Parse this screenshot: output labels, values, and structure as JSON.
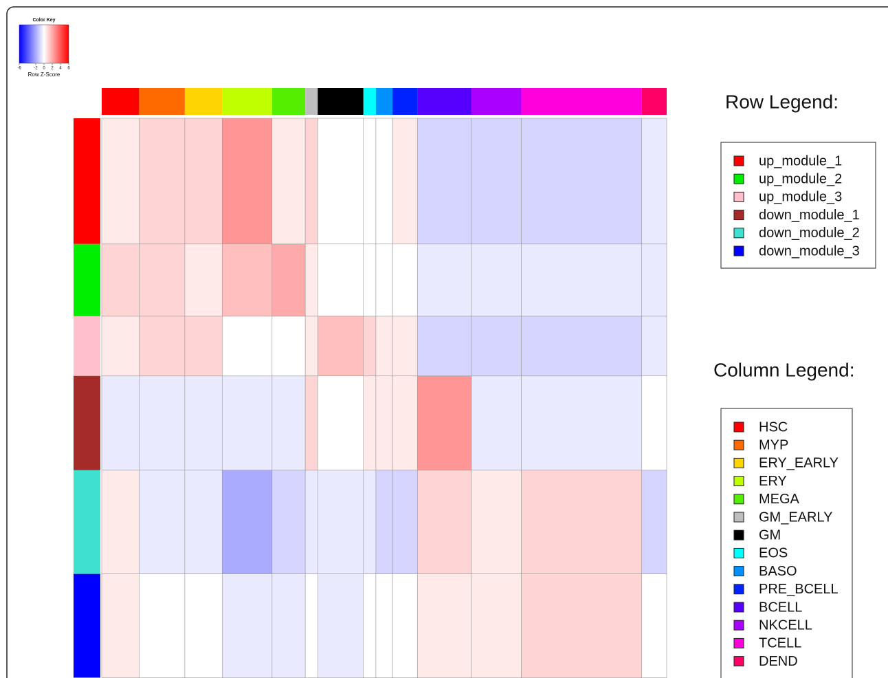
{
  "chart_data": {
    "type": "heatmap",
    "title": "Color Key",
    "colorbar_label": "Row Z-Score",
    "zlim": [
      -6,
      6
    ],
    "zticks": [
      -6,
      -2,
      0,
      2,
      4,
      6
    ],
    "colors": [
      "#0000ff",
      "#ffffff",
      "#ff0000"
    ],
    "row_legend_title": "Row Legend:",
    "column_legend_title": "Column  Legend:",
    "row_groups": [
      {
        "name": "up_module_1",
        "color": "#ff0000",
        "n": 40
      },
      {
        "name": "up_module_2",
        "color": "#00ee00",
        "n": 23
      },
      {
        "name": "up_module_3",
        "color": "#ffc0cb",
        "n": 19
      },
      {
        "name": "down_module_1",
        "color": "#a52a2a",
        "n": 30
      },
      {
        "name": "down_module_2",
        "color": "#40e0d0",
        "n": 33
      },
      {
        "name": "down_module_3",
        "color": "#0000ff",
        "n": 33
      }
    ],
    "column_groups": [
      {
        "name": "HSC",
        "color": "#ff0000",
        "n": 9
      },
      {
        "name": "MYP",
        "color": "#ff6a00",
        "n": 11
      },
      {
        "name": "ERY_EARLY",
        "color": "#ffd500",
        "n": 9
      },
      {
        "name": "ERY",
        "color": "#bfff00",
        "n": 12
      },
      {
        "name": "MEGA",
        "color": "#55ee00",
        "n": 8
      },
      {
        "name": "GM_EARLY",
        "color": "#bebebe",
        "n": 3
      },
      {
        "name": "GM",
        "color": "#000000",
        "n": 11
      },
      {
        "name": "EOS",
        "color": "#00ffff",
        "n": 3
      },
      {
        "name": "BASO",
        "color": "#0090ff",
        "n": 4
      },
      {
        "name": "PRE_BCELL",
        "color": "#0022ff",
        "n": 6
      },
      {
        "name": "BCELL",
        "color": "#5500ff",
        "n": 13
      },
      {
        "name": "NKCELL",
        "color": "#aa00ff",
        "n": 12
      },
      {
        "name": "TCELL",
        "color": "#ff00dd",
        "n": 29
      },
      {
        "name": "DEND",
        "color": "#ff0066",
        "n": 6
      }
    ],
    "values": [
      [
        0.5,
        1,
        1,
        2.5,
        0.5,
        1,
        0,
        0,
        0,
        0.5,
        -1,
        -1,
        -1,
        -0.5
      ],
      [
        1,
        1,
        0.5,
        1.5,
        2,
        0.5,
        0,
        0,
        0,
        0,
        -0.5,
        -0.5,
        -0.5,
        -0.5
      ],
      [
        0.5,
        1,
        1,
        0,
        0,
        0.5,
        1.5,
        1,
        0.5,
        0.5,
        -1,
        -1,
        -1,
        -0.5
      ],
      [
        -0.5,
        -0.5,
        -0.5,
        -0.5,
        -0.5,
        1,
        0,
        0.5,
        0.5,
        0.5,
        2.5,
        -0.5,
        -0.5,
        0
      ],
      [
        0.5,
        -0.5,
        -0.5,
        -2,
        -1,
        -0.5,
        -0.5,
        -0.5,
        -1,
        -1,
        1,
        0.5,
        1,
        -1
      ],
      [
        0.5,
        0,
        0,
        -0.5,
        -0.5,
        0,
        -0.5,
        0,
        0,
        0,
        0.5,
        0.5,
        1,
        0
      ]
    ]
  }
}
